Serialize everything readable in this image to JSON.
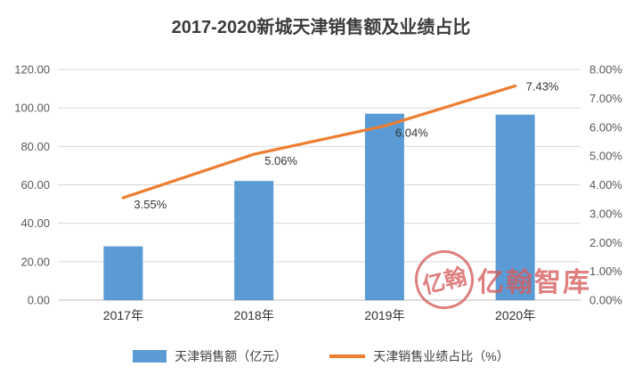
{
  "title": "2017-2020新城天津销售额及业绩占比",
  "chart_data": {
    "type": "bar",
    "subtype": "bar+line combo",
    "categories": [
      "2017年",
      "2018年",
      "2019年",
      "2020年"
    ],
    "series": [
      {
        "name": "天津销售额（亿元）",
        "type": "bar",
        "axis": "left",
        "values": [
          28,
          62,
          97,
          96.5
        ],
        "color": "#5B9BD5"
      },
      {
        "name": "天津销售业绩占比（%）",
        "type": "line",
        "axis": "right",
        "values": [
          3.55,
          5.06,
          6.04,
          7.43
        ],
        "point_labels": [
          "3.55%",
          "5.06%",
          "6.04%",
          "7.43%"
        ],
        "color": "#ED7D31"
      }
    ],
    "left_axis": {
      "min": 0,
      "max": 120,
      "step": 20,
      "labels": [
        "0.00",
        "20.00",
        "40.00",
        "60.00",
        "80.00",
        "100.00",
        "120.00"
      ]
    },
    "right_axis": {
      "min": 0,
      "max": 8,
      "step": 1,
      "labels": [
        "0.00%",
        "1.00%",
        "2.00%",
        "3.00%",
        "4.00%",
        "5.00%",
        "6.00%",
        "7.00%",
        "8.00%"
      ]
    },
    "grid": true,
    "legend_position": "bottom",
    "colors": {
      "grid_line": "#D9D9D9",
      "axis_line": "#BFBFBF",
      "tick_text": "#595959",
      "label_text": "#333333"
    }
  },
  "watermark": {
    "seal_text": "亿翰",
    "text": "亿翰智库",
    "color": "#D75C5C"
  }
}
